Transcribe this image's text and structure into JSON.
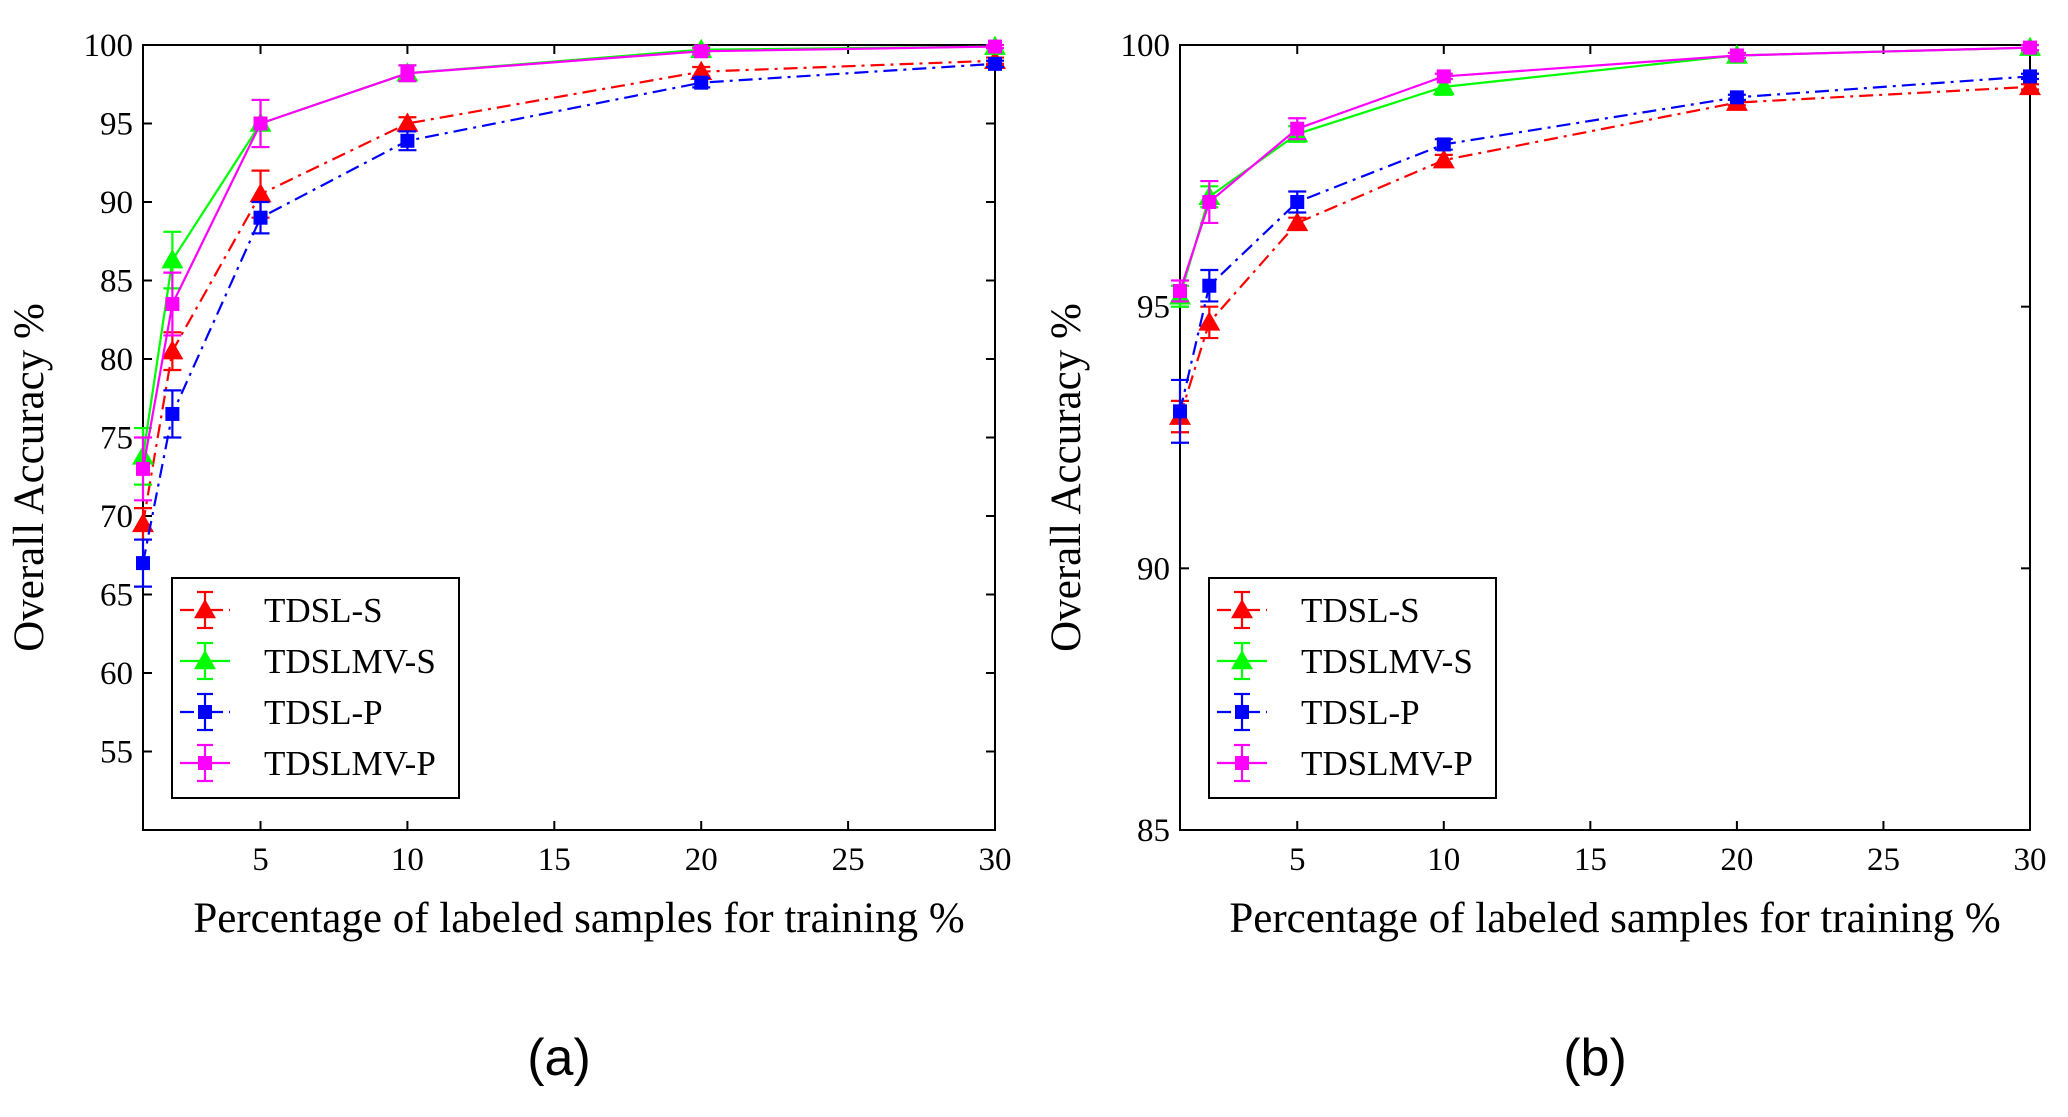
{
  "chart_data": [
    {
      "type": "line",
      "panel_label": "(a)",
      "xlabel": "Percentage of labeled samples for training %",
      "ylabel": "Overall Accuracy %",
      "xlim": [
        1,
        30
      ],
      "ylim": [
        50,
        100
      ],
      "xticks": [
        5,
        10,
        15,
        20,
        25,
        30
      ],
      "yticks": [
        55,
        60,
        65,
        70,
        75,
        80,
        85,
        90,
        95,
        100
      ],
      "grid": false,
      "legend_position": "bottom-left",
      "x": [
        1,
        2,
        5,
        10,
        20,
        30
      ],
      "series": [
        {
          "name": "TDSL-S",
          "color": "#ff0000",
          "dash": "dashdot",
          "marker": "triangle",
          "values": [
            69.5,
            80.5,
            90.5,
            95.0,
            98.3,
            99.0
          ],
          "errors": [
            1.0,
            1.2,
            1.5,
            0.4,
            0.3,
            0.2
          ]
        },
        {
          "name": "TDSLMV-S",
          "color": "#00ff00",
          "dash": "solid",
          "marker": "triangle",
          "values": [
            73.8,
            86.3,
            95.0,
            98.2,
            99.7,
            99.9
          ],
          "errors": [
            1.8,
            1.8,
            1.5,
            0.5,
            0.2,
            0.1
          ]
        },
        {
          "name": "TDSL-P",
          "color": "#0000ff",
          "dash": "dashdot",
          "marker": "square",
          "values": [
            67.0,
            76.5,
            89.0,
            93.9,
            97.6,
            98.8
          ],
          "errors": [
            1.5,
            1.5,
            1.0,
            0.6,
            0.3,
            0.2
          ]
        },
        {
          "name": "TDSLMV-P",
          "color": "#ff00ff",
          "dash": "solid",
          "marker": "square",
          "values": [
            73.0,
            83.5,
            95.0,
            98.2,
            99.6,
            99.9
          ],
          "errors": [
            2.0,
            2.0,
            1.5,
            0.5,
            0.2,
            0.1
          ]
        }
      ]
    },
    {
      "type": "line",
      "panel_label": "(b)",
      "xlabel": "Percentage of labeled samples for training %",
      "ylabel": "Overall Accuracy %",
      "xlim": [
        1,
        30
      ],
      "ylim": [
        85,
        100
      ],
      "xticks": [
        5,
        10,
        15,
        20,
        25,
        30
      ],
      "yticks": [
        85,
        90,
        95,
        100
      ],
      "grid": false,
      "legend_position": "bottom-left",
      "x": [
        1,
        2,
        5,
        10,
        20,
        30
      ],
      "series": [
        {
          "name": "TDSL-S",
          "color": "#ff0000",
          "dash": "dashdot",
          "marker": "triangle",
          "values": [
            92.9,
            94.7,
            96.6,
            97.8,
            98.9,
            99.2
          ],
          "errors": [
            0.3,
            0.3,
            0.1,
            0.1,
            0.05,
            0.05
          ]
        },
        {
          "name": "TDSLMV-S",
          "color": "#00ff00",
          "dash": "solid",
          "marker": "triangle",
          "values": [
            95.2,
            97.1,
            98.3,
            99.2,
            99.8,
            99.95
          ],
          "errors": [
            0.2,
            0.2,
            0.15,
            0.15,
            0.05,
            0.05
          ]
        },
        {
          "name": "TDSL-P",
          "color": "#0000ff",
          "dash": "dashdot",
          "marker": "square",
          "values": [
            93.0,
            95.4,
            97.0,
            98.1,
            99.0,
            99.4
          ],
          "errors": [
            0.6,
            0.3,
            0.2,
            0.1,
            0.05,
            0.05
          ]
        },
        {
          "name": "TDSLMV-P",
          "color": "#ff00ff",
          "dash": "solid",
          "marker": "square",
          "values": [
            95.3,
            97.0,
            98.4,
            99.4,
            99.8,
            99.95
          ],
          "errors": [
            0.2,
            0.4,
            0.2,
            0.05,
            0.05,
            0.05
          ]
        }
      ]
    }
  ]
}
